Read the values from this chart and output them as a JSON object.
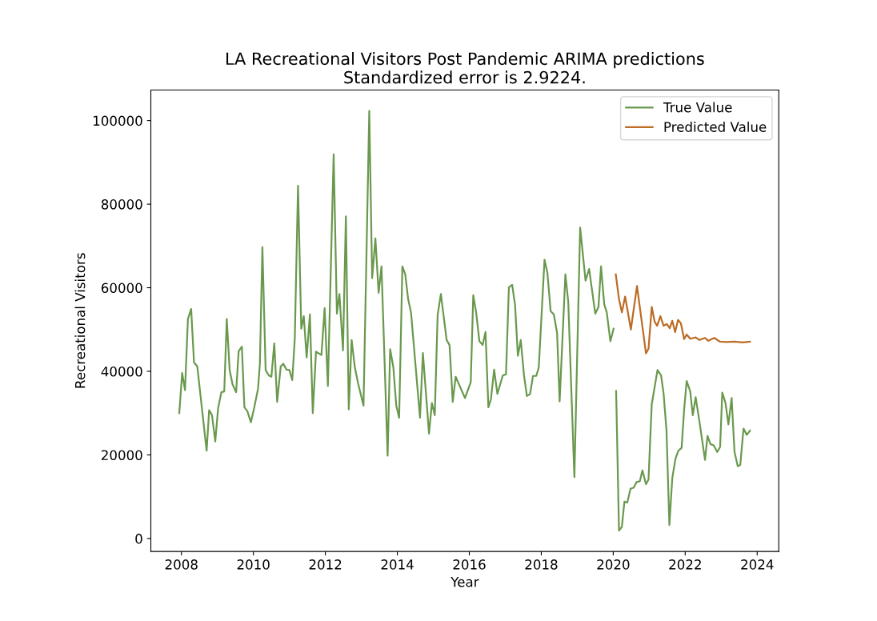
{
  "chart_data": {
    "type": "line",
    "title": "LA Recreational Visitors Post Pandemic ARIMA predictions\nStandardized error is 2.9224.",
    "xlabel": "Year",
    "ylabel": "Recreational Visitors",
    "xlim": [
      2007.15,
      2024.6
    ],
    "xticks": [
      2008,
      2010,
      2012,
      2014,
      2016,
      2018,
      2020,
      2022,
      2024
    ],
    "ylim": [
      -3100,
      107300
    ],
    "yticks": [
      0,
      20000,
      40000,
      60000,
      80000,
      100000
    ],
    "grid": false,
    "legend": "top right",
    "marker": "none",
    "line_style": "solid",
    "series": [
      {
        "name": "True Value",
        "color": "#6a994e",
        "x": [
          2007.94,
          2008.02,
          2008.1,
          2008.18,
          2008.27,
          2008.35,
          2008.44,
          2008.7,
          2008.77,
          2008.85,
          2008.94,
          2009.02,
          2009.11,
          2009.19,
          2009.26,
          2009.34,
          2009.42,
          2009.52,
          2009.59,
          2009.68,
          2009.75,
          2009.83,
          2009.93,
          2010.02,
          2010.13,
          2010.18,
          2010.25,
          2010.34,
          2010.43,
          2010.5,
          2010.58,
          2010.66,
          2010.76,
          2010.83,
          2010.92,
          2011.0,
          2011.08,
          2011.15,
          2011.24,
          2011.33,
          2011.4,
          2011.48,
          2011.57,
          2011.65,
          2011.74,
          2011.89,
          2011.98,
          2012.07,
          2012.23,
          2012.32,
          2012.39,
          2012.49,
          2012.57,
          2012.65,
          2012.73,
          2012.82,
          2012.91,
          2013.06,
          2013.22,
          2013.3,
          2013.39,
          2013.48,
          2013.56,
          2013.73,
          2013.8,
          2013.89,
          2013.97,
          2014.05,
          2014.14,
          2014.22,
          2014.3,
          2014.38,
          2014.63,
          2014.71,
          2014.88,
          2014.96,
          2015.04,
          2015.12,
          2015.21,
          2015.37,
          2015.45,
          2015.54,
          2015.62,
          2015.88,
          2016.04,
          2016.11,
          2016.19,
          2016.28,
          2016.37,
          2016.45,
          2016.53,
          2016.6,
          2016.69,
          2016.78,
          2016.93,
          2017.02,
          2017.1,
          2017.19,
          2017.27,
          2017.35,
          2017.43,
          2017.52,
          2017.6,
          2017.69,
          2017.77,
          2017.86,
          2017.93,
          2018.09,
          2018.17,
          2018.26,
          2018.35,
          2018.44,
          2018.51,
          2018.67,
          2018.75,
          2018.92,
          2019.08,
          2019.23,
          2019.33,
          2019.5,
          2019.59,
          2019.66,
          2019.75,
          2019.82,
          2019.92,
          2020.01,
          2020.04,
          2020.08,
          2020.16,
          2020.24,
          2020.31,
          2020.39,
          2020.48,
          2020.57,
          2020.65,
          2020.74,
          2020.81,
          2020.91,
          2020.98,
          2021.07,
          2021.23,
          2021.33,
          2021.4,
          2021.48,
          2021.56,
          2021.64,
          2021.73,
          2021.81,
          2021.9,
          2021.97,
          2022.04,
          2022.14,
          2022.21,
          2022.29,
          2022.39,
          2022.55,
          2022.62,
          2022.7,
          2022.79,
          2022.89,
          2022.97,
          2023.03,
          2023.12,
          2023.2,
          2023.29,
          2023.37,
          2023.46,
          2023.53,
          2023.62,
          2023.71,
          2023.8
        ],
        "values": [
          30000,
          39600,
          35500,
          52500,
          54900,
          42100,
          41200,
          21000,
          30700,
          29500,
          23200,
          31200,
          35000,
          35200,
          52500,
          40300,
          36900,
          35000,
          44800,
          45900,
          31400,
          30500,
          27800,
          31200,
          35900,
          41800,
          69700,
          40300,
          39000,
          38700,
          46700,
          32700,
          41200,
          41800,
          40400,
          40300,
          37900,
          47800,
          84400,
          50200,
          53200,
          43300,
          53600,
          30000,
          44700,
          43900,
          55100,
          36500,
          91900,
          53800,
          58500,
          45000,
          77100,
          30900,
          47500,
          40900,
          37100,
          31800,
          102300,
          62300,
          71800,
          58800,
          65100,
          19800,
          45300,
          40900,
          31800,
          28900,
          65100,
          63200,
          57300,
          54100,
          28900,
          44400,
          25100,
          32400,
          29500,
          53500,
          58500,
          47500,
          46300,
          32700,
          38700,
          33600,
          37400,
          58200,
          54100,
          47200,
          46300,
          49400,
          31400,
          33300,
          40400,
          34600,
          39000,
          39300,
          60100,
          60700,
          56000,
          43700,
          47500,
          39000,
          34100,
          34600,
          38900,
          38900,
          40900,
          66700,
          63600,
          54400,
          53600,
          49100,
          32800,
          63200,
          56600,
          14700,
          74400,
          61700,
          64500,
          53800,
          55400,
          65100,
          56000,
          54100,
          47200,
          50200,
          null,
          35300,
          1900,
          2800,
          8800,
          8600,
          11900,
          12200,
          13500,
          13700,
          16300,
          13000,
          14100,
          32100,
          40300,
          39000,
          34600,
          25800,
          3200,
          14400,
          19100,
          21000,
          21700,
          30800,
          37700,
          35200,
          29500,
          33800,
          28300,
          18800,
          24500,
          22600,
          22300,
          20700,
          21900,
          34900,
          32400,
          27300,
          33600,
          20700,
          17300,
          17600,
          26300,
          24800,
          25800
        ]
      },
      {
        "name": "Predicted Value",
        "color": "#bc6c25",
        "x": [
          2020.07,
          2020.16,
          2020.24,
          2020.33,
          2020.49,
          2020.66,
          2020.91,
          2020.98,
          2021.07,
          2021.15,
          2021.22,
          2021.31,
          2021.4,
          2021.49,
          2021.57,
          2021.64,
          2021.72,
          2021.8,
          2021.88,
          2021.97,
          2022.04,
          2022.14,
          2022.29,
          2022.4,
          2022.55,
          2022.64,
          2022.81,
          2022.96,
          2023.15,
          2023.37,
          2023.59,
          2023.8
        ],
        "values": [
          63200,
          57300,
          54100,
          57900,
          50000,
          60400,
          44300,
          45400,
          55400,
          51900,
          50900,
          53200,
          50900,
          51300,
          50300,
          52100,
          49400,
          52300,
          51500,
          47700,
          48800,
          47800,
          48100,
          47500,
          48000,
          47300,
          48000,
          47100,
          47000,
          47100,
          46900,
          47100
        ]
      }
    ]
  }
}
